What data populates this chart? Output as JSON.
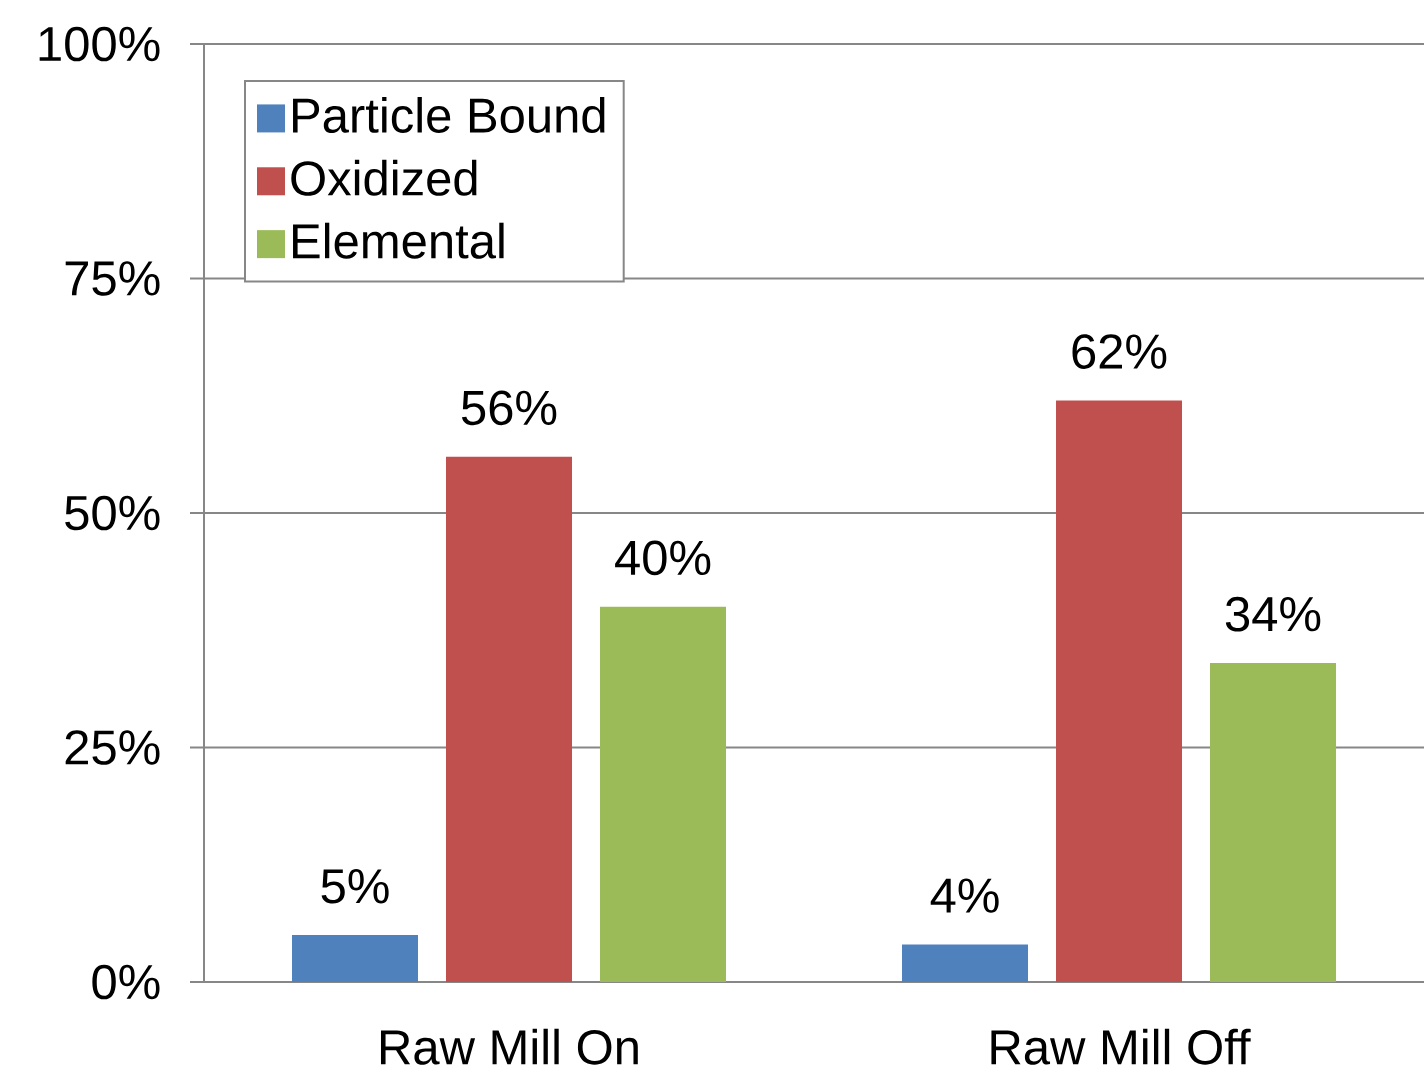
{
  "chart_data": {
    "type": "bar",
    "categories": [
      "Raw Mill On",
      "Raw Mill Off"
    ],
    "series": [
      {
        "name": "Particle Bound",
        "color": "#4f81bd",
        "values": [
          5,
          4
        ],
        "value_labels": [
          "5%",
          "4%"
        ]
      },
      {
        "name": "Oxidized",
        "color": "#c0504d",
        "values": [
          56,
          62
        ],
        "value_labels": [
          "56%",
          "62%"
        ]
      },
      {
        "name": "Elemental",
        "color": "#9bbb59",
        "values": [
          40,
          34
        ],
        "value_labels": [
          "40%",
          "34%"
        ]
      }
    ],
    "ylim": [
      0,
      100
    ],
    "yticks": [
      {
        "value": 0,
        "label": "0%"
      },
      {
        "value": 25,
        "label": "25%"
      },
      {
        "value": 50,
        "label": "50%"
      },
      {
        "value": 75,
        "label": "75%"
      },
      {
        "value": 100,
        "label": "100%"
      }
    ],
    "grid": "y",
    "legend": "top left"
  }
}
